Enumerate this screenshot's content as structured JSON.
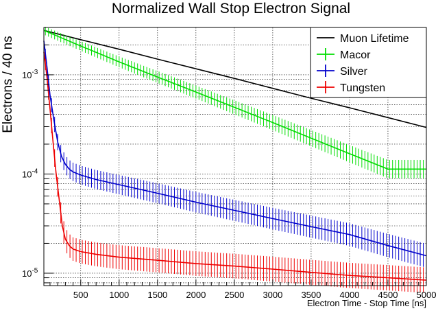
{
  "chart_data": {
    "type": "line",
    "title": "Normalized Wall Stop Electron Signal",
    "xlabel": "Electron Time - Stop Time [ns]",
    "ylabel": "Electrons / 40 ns",
    "xlim": [
      20,
      5000
    ],
    "ylim": [
      7.5e-06,
      0.003
    ],
    "yscale": "log",
    "grid": true,
    "legend_position": "top-right",
    "x_ticks": [
      {
        "value": 500,
        "label": "500"
      },
      {
        "value": 1000,
        "label": "1000"
      },
      {
        "value": 1500,
        "label": "1500"
      },
      {
        "value": 2000,
        "label": "2000"
      },
      {
        "value": 2500,
        "label": "2500"
      },
      {
        "value": 3000,
        "label": "3000"
      },
      {
        "value": 3500,
        "label": "3500"
      },
      {
        "value": 4000,
        "label": "4000"
      },
      {
        "value": 4500,
        "label": "4500"
      },
      {
        "value": 5000,
        "label": "5000"
      }
    ],
    "y_ticks": [
      {
        "value": 1e-05,
        "mantissa": "10",
        "exponent": "-5"
      },
      {
        "value": 0.0001,
        "mantissa": "10",
        "exponent": "-4"
      },
      {
        "value": 0.001,
        "mantissa": "10",
        "exponent": "-3"
      }
    ],
    "series": [
      {
        "name": "Muon Lifetime",
        "color": "#000000",
        "error_bars": false,
        "x": [
          20,
          500,
          1000,
          1500,
          2000,
          2500,
          3000,
          3500,
          4000,
          4500,
          5000
        ],
        "values": [
          0.0028,
          0.00226,
          0.00181,
          0.00144,
          0.00115,
          0.00092,
          0.00073,
          0.00058,
          0.000465,
          0.00037,
          0.000295
        ]
      },
      {
        "name": "Macor",
        "color": "#00dd00",
        "error_bars": true,
        "x": [
          20,
          500,
          1000,
          1500,
          2000,
          2500,
          3000,
          3500,
          4000,
          4500,
          5000
        ],
        "values": [
          0.0028,
          0.00195,
          0.00135,
          0.00095,
          0.00067,
          0.00047,
          0.00033,
          0.00023,
          0.00016,
          0.000112,
          0.000112
        ]
      },
      {
        "name": "Silver",
        "color": "#0000cc",
        "error_bars": true,
        "x": [
          20,
          60,
          100,
          150,
          200,
          250,
          300,
          350,
          400,
          500,
          700,
          1000,
          1500,
          2000,
          2500,
          3000,
          3500,
          4000,
          4500,
          5000
        ],
        "values": [
          0.0022,
          0.0012,
          0.00062,
          0.00035,
          0.00021,
          0.00015,
          0.000125,
          0.000112,
          0.000105,
          9.75e-05,
          8.8e-05,
          7.8e-05,
          6.4e-05,
          5.2e-05,
          4.3e-05,
          3.55e-05,
          2.95e-05,
          2.45e-05,
          1.9e-05,
          1.5e-05
        ]
      },
      {
        "name": "Tungsten",
        "color": "#ee0000",
        "error_bars": true,
        "x": [
          20,
          60,
          100,
          140,
          180,
          220,
          260,
          300,
          350,
          400,
          500,
          700,
          1000,
          1500,
          2000,
          2500,
          3000,
          3500,
          4000,
          4500,
          5000
        ],
        "values": [
          0.0017,
          0.00095,
          0.00045,
          0.00021,
          0.0001,
          5.5e-05,
          3e-05,
          2.2e-05,
          1.9e-05,
          1.75e-05,
          1.65e-05,
          1.55e-05,
          1.45e-05,
          1.35e-05,
          1.25e-05,
          1.18e-05,
          1.1e-05,
          1.02e-05,
          9.5e-06,
          9e-06,
          8.5e-06
        ]
      }
    ]
  }
}
